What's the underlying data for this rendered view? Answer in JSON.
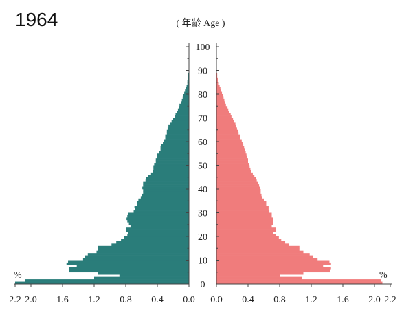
{
  "chart_data": {
    "type": "bar",
    "title": "1964",
    "age_axis_label": "( 年齢 Age )",
    "unit_symbol": "%",
    "age_ticks": [
      "0",
      "10",
      "20",
      "30",
      "40",
      "50",
      "60",
      "70",
      "80",
      "90",
      "100"
    ],
    "x_ticks_left": [
      "2.2",
      "2.0",
      "1.6",
      "1.2",
      "0.8",
      "0.4",
      "0.0"
    ],
    "x_ticks_right": [
      "0.0",
      "0.4",
      "0.8",
      "1.2",
      "1.6",
      "2.0",
      "2.2"
    ],
    "xlim": [
      0,
      2.2
    ],
    "ylim": [
      0,
      100
    ],
    "colors": {
      "male": "#2a7d7a",
      "female": "#f07c7c"
    },
    "ages": [
      0,
      1,
      2,
      3,
      4,
      5,
      6,
      7,
      8,
      9,
      10,
      11,
      12,
      13,
      14,
      15,
      16,
      17,
      18,
      19,
      20,
      21,
      22,
      23,
      24,
      25,
      26,
      27,
      28,
      29,
      30,
      31,
      32,
      33,
      34,
      35,
      36,
      37,
      38,
      39,
      40,
      41,
      42,
      43,
      44,
      45,
      46,
      47,
      48,
      49,
      50,
      51,
      52,
      53,
      54,
      55,
      56,
      57,
      58,
      59,
      60,
      61,
      62,
      63,
      64,
      65,
      66,
      67,
      68,
      69,
      70,
      71,
      72,
      73,
      74,
      75,
      76,
      77,
      78,
      79,
      80,
      81,
      82,
      83,
      84,
      85,
      86,
      87,
      88,
      89,
      90
    ],
    "series": [
      {
        "side": "left",
        "values": [
          2.2,
          2.07,
          1.2,
          0.88,
          1.15,
          1.52,
          1.52,
          1.42,
          1.55,
          1.53,
          1.34,
          1.32,
          1.28,
          1.17,
          1.15,
          1.15,
          0.98,
          0.92,
          0.86,
          0.82,
          0.78,
          0.77,
          0.8,
          0.8,
          0.74,
          0.76,
          0.78,
          0.79,
          0.78,
          0.77,
          0.7,
          0.68,
          0.69,
          0.66,
          0.66,
          0.64,
          0.61,
          0.6,
          0.58,
          0.58,
          0.59,
          0.58,
          0.58,
          0.55,
          0.54,
          0.52,
          0.48,
          0.46,
          0.45,
          0.45,
          0.44,
          0.42,
          0.42,
          0.4,
          0.4,
          0.38,
          0.36,
          0.36,
          0.35,
          0.33,
          0.32,
          0.3,
          0.3,
          0.28,
          0.28,
          0.27,
          0.26,
          0.24,
          0.22,
          0.2,
          0.18,
          0.17,
          0.15,
          0.14,
          0.13,
          0.12,
          0.1,
          0.09,
          0.08,
          0.07,
          0.06,
          0.05,
          0.04,
          0.03,
          0.02,
          0.02,
          0.01,
          0.01,
          0.01,
          0.0,
          0.0
        ]
      },
      {
        "side": "right",
        "values": [
          2.1,
          2.08,
          1.08,
          0.8,
          1.1,
          1.44,
          1.45,
          1.35,
          1.45,
          1.43,
          1.28,
          1.22,
          1.18,
          1.1,
          1.05,
          1.05,
          0.92,
          0.87,
          0.82,
          0.79,
          0.75,
          0.72,
          0.75,
          0.75,
          0.7,
          0.72,
          0.72,
          0.72,
          0.7,
          0.7,
          0.67,
          0.66,
          0.66,
          0.63,
          0.63,
          0.6,
          0.58,
          0.57,
          0.56,
          0.56,
          0.55,
          0.54,
          0.53,
          0.51,
          0.5,
          0.48,
          0.46,
          0.44,
          0.43,
          0.42,
          0.41,
          0.4,
          0.4,
          0.39,
          0.38,
          0.37,
          0.36,
          0.35,
          0.34,
          0.33,
          0.32,
          0.3,
          0.3,
          0.28,
          0.27,
          0.26,
          0.25,
          0.24,
          0.22,
          0.21,
          0.19,
          0.18,
          0.16,
          0.15,
          0.14,
          0.12,
          0.11,
          0.1,
          0.09,
          0.08,
          0.07,
          0.06,
          0.05,
          0.04,
          0.03,
          0.02,
          0.02,
          0.01,
          0.01,
          0.0,
          0.0
        ]
      }
    ]
  }
}
